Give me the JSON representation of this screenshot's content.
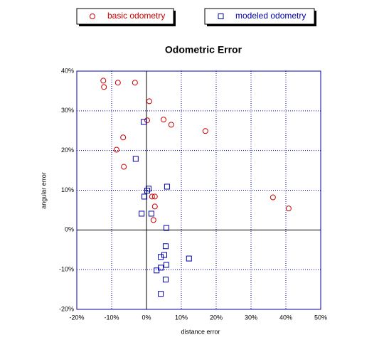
{
  "chart_data": {
    "type": "scatter",
    "title": "Odometric Error",
    "x_label": "distance error",
    "y_label": "angular error",
    "xlim": [
      -20,
      50
    ],
    "ylim": [
      -20,
      40
    ],
    "xticks": [
      {
        "value": -20,
        "label": "-20%"
      },
      {
        "value": -10,
        "label": "-10%"
      },
      {
        "value": 0,
        "label": "0%"
      },
      {
        "value": 10,
        "label": "10%"
      },
      {
        "value": 20,
        "label": "20%"
      },
      {
        "value": 30,
        "label": "30%"
      },
      {
        "value": 40,
        "label": "40%"
      },
      {
        "value": 50,
        "label": "50%"
      }
    ],
    "yticks": [
      {
        "value": -20,
        "label": "-20%"
      },
      {
        "value": -10,
        "label": "-10%"
      },
      {
        "value": 0,
        "label": "0%"
      },
      {
        "value": 10,
        "label": "10%"
      },
      {
        "value": 20,
        "label": "20%"
      },
      {
        "value": 30,
        "label": "30%"
      },
      {
        "value": 40,
        "label": "40%"
      }
    ],
    "grid": true,
    "series": [
      {
        "name": "basic odometry",
        "color": "#cc0000",
        "marker": "circle",
        "x": [
          -12.4,
          -12.2,
          -8.2,
          -3.3,
          0.8,
          0.2,
          4.9,
          7.1,
          16.9,
          -6.7,
          -8.6,
          -6.5,
          1.6,
          2.4,
          2.4,
          2.0,
          36.3,
          40.8
        ],
        "values": [
          37.6,
          36.0,
          37.1,
          37.1,
          32.4,
          27.6,
          27.8,
          26.5,
          24.9,
          23.3,
          20.2,
          15.9,
          8.4,
          8.4,
          5.9,
          2.5,
          8.2,
          5.4
        ]
      },
      {
        "name": "modeled odometry",
        "color": "#0000aa",
        "marker": "square",
        "x": [
          -0.8,
          -3.1,
          5.9,
          0.6,
          0.2,
          -0.6,
          -1.4,
          1.4,
          5.7,
          5.5,
          5.1,
          4.1,
          12.2,
          5.7,
          4.1,
          2.9,
          5.5,
          4.1
        ],
        "values": [
          27.2,
          17.9,
          10.9,
          10.4,
          9.9,
          8.4,
          4.1,
          4.1,
          0.5,
          -4.1,
          -6.3,
          -6.8,
          -7.2,
          -8.8,
          -9.5,
          -10.2,
          -12.5,
          -16.1
        ]
      }
    ]
  }
}
